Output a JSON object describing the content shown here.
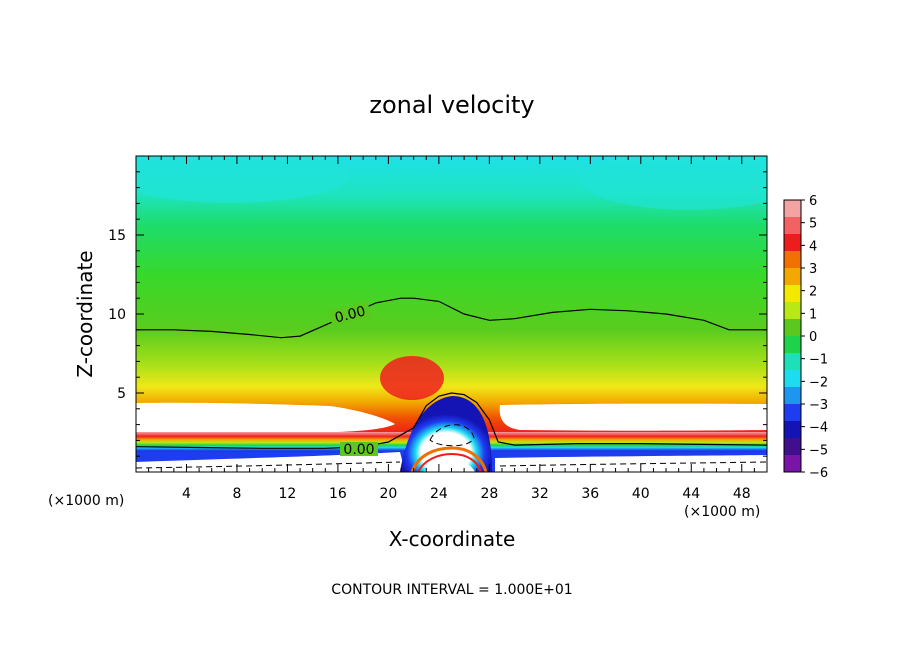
{
  "chart_data": {
    "type": "heatmap",
    "title": "zonal velocity",
    "xlabel": "X-coordinate",
    "ylabel": "Z-coordinate",
    "x_unit": "(×1000 m)",
    "xlim": [
      0,
      50
    ],
    "ylim": [
      0,
      20
    ],
    "xticks": [
      4,
      8,
      12,
      16,
      20,
      24,
      28,
      32,
      36,
      40,
      44,
      48
    ],
    "yticks": [
      5,
      10,
      15
    ],
    "footnote": "CONTOUR INTERVAL = 1.000E+01",
    "colorbar": {
      "min": -6,
      "max": 6,
      "labels": [
        "6",
        "5",
        "4",
        "3",
        "2",
        "1",
        "0",
        "−1",
        "−2",
        "−3",
        "−4",
        "−5",
        "−6"
      ],
      "colors": [
        "#f4a3a3",
        "#f26262",
        "#ee1c1c",
        "#f07000",
        "#f2a800",
        "#f2e800",
        "#b8e816",
        "#5ac81e",
        "#1ed24a",
        "#1ee0b8",
        "#1edcf0",
        "#1e96f0",
        "#1e3cf0",
        "#1414b4",
        "#40108c",
        "#7a14a8"
      ]
    },
    "zero_contour_labels": [
      "0.00",
      "0.00"
    ],
    "zero_contour_upper": [
      [
        0,
        9.0
      ],
      [
        3,
        9.0
      ],
      [
        6,
        8.9
      ],
      [
        9,
        8.7
      ],
      [
        11.5,
        8.5
      ],
      [
        13,
        8.6
      ],
      [
        15,
        9.3
      ],
      [
        17,
        10.0
      ],
      [
        19,
        10.7
      ],
      [
        21,
        11.0
      ],
      [
        22,
        11.0
      ],
      [
        24,
        10.8
      ],
      [
        26,
        10.0
      ],
      [
        28,
        9.6
      ],
      [
        30,
        9.7
      ],
      [
        33,
        10.1
      ],
      [
        36,
        10.3
      ],
      [
        39,
        10.2
      ],
      [
        42,
        10.0
      ],
      [
        45,
        9.6
      ],
      [
        47,
        9.0
      ],
      [
        50,
        9.0
      ]
    ],
    "zero_contour_lower": [
      [
        0,
        1.6
      ],
      [
        5,
        1.55
      ],
      [
        10,
        1.5
      ],
      [
        15,
        1.5
      ],
      [
        18,
        1.6
      ],
      [
        20,
        1.9
      ],
      [
        22,
        2.8
      ],
      [
        23,
        4.2
      ],
      [
        24,
        4.8
      ],
      [
        25,
        5.0
      ],
      [
        26,
        4.9
      ],
      [
        27,
        4.4
      ],
      [
        28,
        3.3
      ],
      [
        28.7,
        1.9
      ],
      [
        30,
        1.7
      ],
      [
        35,
        1.8
      ],
      [
        40,
        1.8
      ],
      [
        45,
        1.75
      ],
      [
        50,
        1.7
      ]
    ]
  }
}
